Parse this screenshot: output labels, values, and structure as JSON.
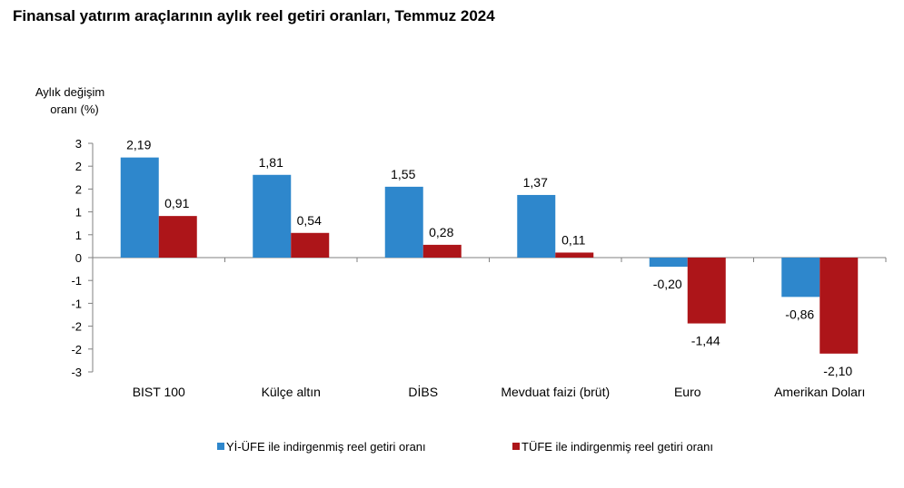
{
  "title": "Finansal yatırım araçlarının aylık reel getiri oranları, Temmuz 2024",
  "chart_data": {
    "type": "bar",
    "title": "Finansal yatırım araçlarının aylık reel getiri oranları, Temmuz 2024",
    "ylabel_line1": "Aylık değişim",
    "ylabel_line2": "oranı (%)",
    "xlabel": "",
    "ylim": [
      -2.5,
      2.5
    ],
    "ytick_labels": [
      "3",
      "2",
      "2",
      "1",
      "1",
      "0",
      "-1",
      "-1",
      "-2",
      "-2",
      "-3"
    ],
    "categories": [
      "BIST 100",
      "Külçe altın",
      "DİBS",
      "Mevduat faizi (brüt)",
      "Euro",
      "Amerikan Doları"
    ],
    "series": [
      {
        "name": "Yİ-ÜFE ile indirgenmiş reel getiri oranı",
        "color": "#2E87CC",
        "values": [
          2.19,
          1.81,
          1.55,
          1.37,
          -0.2,
          -0.86
        ],
        "labels": [
          "2,19",
          "1,81",
          "1,55",
          "1,37",
          "-0,20",
          "-0,86"
        ]
      },
      {
        "name": "TÜFE ile indirgenmiş reel getiri oranı",
        "color": "#AD1519",
        "values": [
          0.91,
          0.54,
          0.28,
          0.11,
          -1.44,
          -2.1
        ],
        "labels": [
          "0,91",
          "0,54",
          "0,28",
          "0,11",
          "-1,44",
          "-2,10"
        ]
      }
    ],
    "grid": false,
    "legend_position": "bottom"
  }
}
